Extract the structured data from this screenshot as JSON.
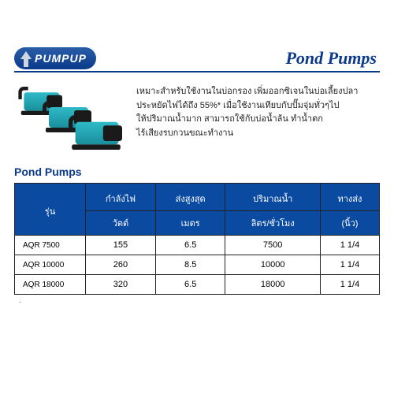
{
  "logo": {
    "text1": "PUMP",
    "text2": "UP"
  },
  "header": {
    "title": "Pond Pumps"
  },
  "description": {
    "line1": "เหมาะสำหรับใช้งานในบ่อกรอง เพิ่มออกซิเจนในบ่อเลี้ยงปลา",
    "line2": "ประหยัดไฟได้ถึง 55%* เมื่อใช้งานเทียบกับปั๊มจุ่มทั่วๆไป",
    "line3": "ให้ปริมาณน้ำมาก สามารถใช้กับบ่อน้ำล้น ทำน้ำตก",
    "line4": "ไร้เสียงรบกวนขณะทำงาน"
  },
  "section_title": "Pond Pumps",
  "table": {
    "head": {
      "model": "รุ่น",
      "r1": [
        "กำลังไฟ",
        "ส่งสูงสุด",
        "ปริมาณน้ำ",
        "ทางส่ง"
      ],
      "r2": [
        "วัตต์",
        "เมตร",
        "ลิตร/ชั่วโมง",
        "(นิ้ว)"
      ]
    },
    "rows": [
      {
        "model": "AQR 7500",
        "c": [
          "155",
          "6.5",
          "7500",
          "1 1/4"
        ]
      },
      {
        "model": "AQR 10000",
        "c": [
          "260",
          "8.5",
          "10000",
          "1 1/4"
        ]
      },
      {
        "model": "AQR 18000",
        "c": [
          "320",
          "6.5",
          "18000",
          "1 1/4"
        ]
      }
    ]
  },
  "note": "·"
}
